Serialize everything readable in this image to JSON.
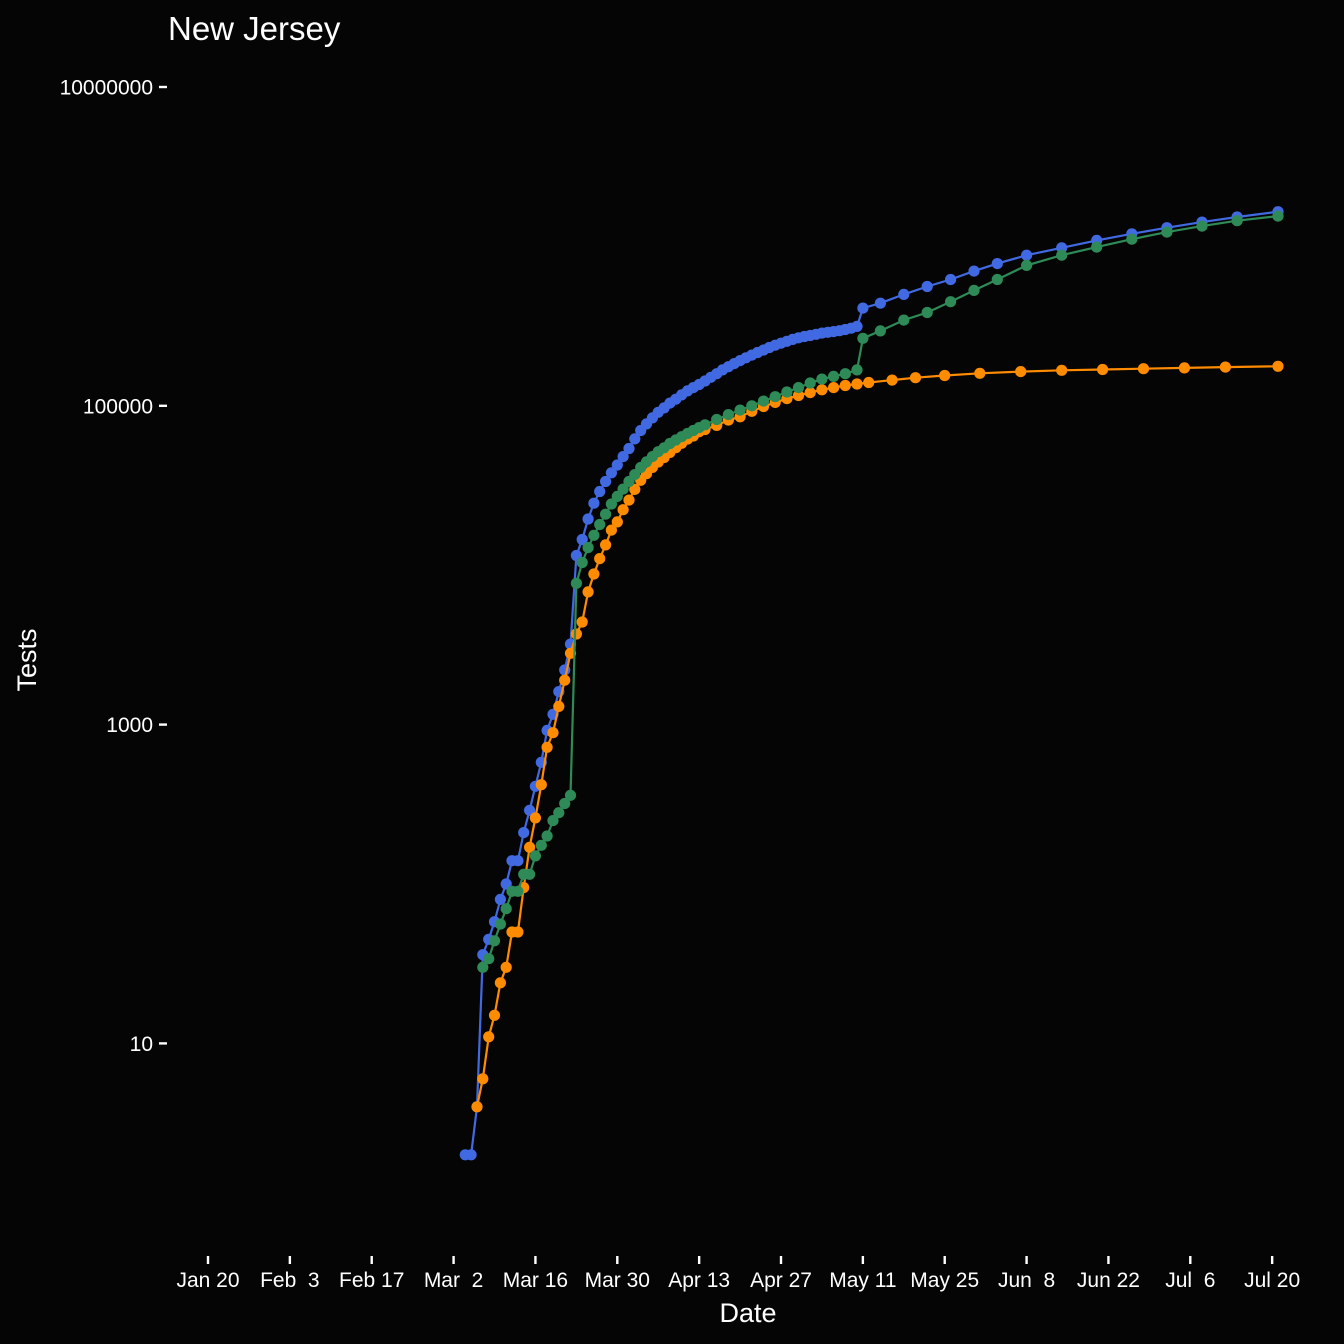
{
  "chart_data": {
    "type": "line",
    "title": "New Jersey",
    "xlabel": "Date",
    "ylabel": "Tests",
    "y_scale": "log10",
    "ylim": [
      1,
      10000000
    ],
    "xlim": [
      "2020-01-16",
      "2020-07-21"
    ],
    "y_ticks": [
      10,
      1000,
      100000,
      10000000
    ],
    "y_tick_labels": [
      "10",
      "1000",
      "100000",
      "10000000"
    ],
    "x_ticks": [
      "2020-01-20",
      "2020-02-03",
      "2020-02-17",
      "2020-03-02",
      "2020-03-16",
      "2020-03-30",
      "2020-04-13",
      "2020-04-27",
      "2020-05-11",
      "2020-05-25",
      "2020-06-08",
      "2020-06-22",
      "2020-07-06",
      "2020-07-20"
    ],
    "x_tick_labels": [
      "Jan 20",
      "Feb  3",
      "Feb 17",
      "Mar  2",
      "Mar 16",
      "Mar 30",
      "Apr 13",
      "Apr 27",
      "May 11",
      "May 25",
      "Jun  8",
      "Jun 22",
      "Jul  6",
      "Jul 20"
    ],
    "grid": false,
    "legend": "none",
    "series": [
      {
        "color": "#4169e1",
        "points": [
          [
            "2020-03-04",
            2
          ],
          [
            "2020-03-05",
            2
          ],
          [
            "2020-03-06",
            4
          ],
          [
            "2020-03-07",
            36
          ],
          [
            "2020-03-08",
            45
          ],
          [
            "2020-03-09",
            58
          ],
          [
            "2020-03-10",
            80
          ],
          [
            "2020-03-11",
            100
          ],
          [
            "2020-03-12",
            140
          ],
          [
            "2020-03-13",
            140
          ],
          [
            "2020-03-14",
            210
          ],
          [
            "2020-03-15",
            290
          ],
          [
            "2020-03-16",
            410
          ],
          [
            "2020-03-17",
            580
          ],
          [
            "2020-03-18",
            920
          ],
          [
            "2020-03-19",
            1160
          ],
          [
            "2020-03-20",
            1610
          ],
          [
            "2020-03-21",
            2200
          ],
          [
            "2020-03-22",
            3200
          ],
          [
            "2020-03-23",
            11500
          ],
          [
            "2020-03-24",
            14500
          ],
          [
            "2020-03-25",
            19500
          ],
          [
            "2020-03-26",
            24500
          ],
          [
            "2020-03-27",
            29000
          ],
          [
            "2020-03-28",
            33500
          ],
          [
            "2020-03-29",
            38000
          ],
          [
            "2020-03-30",
            42500
          ],
          [
            "2020-03-31",
            48000
          ],
          [
            "2020-04-01",
            54000
          ],
          [
            "2020-04-02",
            62000
          ],
          [
            "2020-04-03",
            70000
          ],
          [
            "2020-04-04",
            77000
          ],
          [
            "2020-04-05",
            84000
          ],
          [
            "2020-04-06",
            91000
          ],
          [
            "2020-04-07",
            97000
          ],
          [
            "2020-04-08",
            104000
          ],
          [
            "2020-04-09",
            110000
          ],
          [
            "2020-04-10",
            117000
          ],
          [
            "2020-04-11",
            124000
          ],
          [
            "2020-04-12",
            130000
          ],
          [
            "2020-04-13",
            136000
          ],
          [
            "2020-04-14",
            143000
          ],
          [
            "2020-04-15",
            151000
          ],
          [
            "2020-04-16",
            159000
          ],
          [
            "2020-04-17",
            168000
          ],
          [
            "2020-04-18",
            176000
          ],
          [
            "2020-04-19",
            184000
          ],
          [
            "2020-04-20",
            192000
          ],
          [
            "2020-04-21",
            200000
          ],
          [
            "2020-04-22",
            208000
          ],
          [
            "2020-04-23",
            216000
          ],
          [
            "2020-04-24",
            224000
          ],
          [
            "2020-04-25",
            232000
          ],
          [
            "2020-04-26",
            240000
          ],
          [
            "2020-04-27",
            247000
          ],
          [
            "2020-04-28",
            254000
          ],
          [
            "2020-04-29",
            261000
          ],
          [
            "2020-04-30",
            267000
          ],
          [
            "2020-05-01",
            272000
          ],
          [
            "2020-05-02",
            276000
          ],
          [
            "2020-05-03",
            281000
          ],
          [
            "2020-05-04",
            286000
          ],
          [
            "2020-05-05",
            289000
          ],
          [
            "2020-05-06",
            292000
          ],
          [
            "2020-05-07",
            296000
          ],
          [
            "2020-05-08",
            301000
          ],
          [
            "2020-05-09",
            307000
          ],
          [
            "2020-05-10",
            315000
          ],
          [
            "2020-05-11",
            410000
          ],
          [
            "2020-05-14",
            440000
          ],
          [
            "2020-05-18",
            500000
          ],
          [
            "2020-05-22",
            560000
          ],
          [
            "2020-05-26",
            620000
          ],
          [
            "2020-05-30",
            700000
          ],
          [
            "2020-06-03",
            780000
          ],
          [
            "2020-06-08",
            880000
          ],
          [
            "2020-06-14",
            980000
          ],
          [
            "2020-06-20",
            1090000
          ],
          [
            "2020-06-26",
            1200000
          ],
          [
            "2020-07-02",
            1310000
          ],
          [
            "2020-07-08",
            1420000
          ],
          [
            "2020-07-14",
            1530000
          ],
          [
            "2020-07-21",
            1650000
          ]
        ]
      },
      {
        "color": "#ff8c00",
        "points": [
          [
            "2020-03-06",
            4
          ],
          [
            "2020-03-07",
            6
          ],
          [
            "2020-03-08",
            11
          ],
          [
            "2020-03-09",
            15
          ],
          [
            "2020-03-10",
            24
          ],
          [
            "2020-03-11",
            30
          ],
          [
            "2020-03-12",
            50
          ],
          [
            "2020-03-13",
            50
          ],
          [
            "2020-03-14",
            95
          ],
          [
            "2020-03-15",
            170
          ],
          [
            "2020-03-16",
            260
          ],
          [
            "2020-03-17",
            420
          ],
          [
            "2020-03-18",
            720
          ],
          [
            "2020-03-19",
            890
          ],
          [
            "2020-03-20",
            1300
          ],
          [
            "2020-03-21",
            1900
          ],
          [
            "2020-03-22",
            2800
          ],
          [
            "2020-03-23",
            3700
          ],
          [
            "2020-03-24",
            4400
          ],
          [
            "2020-03-25",
            6800
          ],
          [
            "2020-03-26",
            8800
          ],
          [
            "2020-03-27",
            11000
          ],
          [
            "2020-03-28",
            13400
          ],
          [
            "2020-03-29",
            16600
          ],
          [
            "2020-03-30",
            18700
          ],
          [
            "2020-03-31",
            22300
          ],
          [
            "2020-04-01",
            25600
          ],
          [
            "2020-04-02",
            29900
          ],
          [
            "2020-04-03",
            34100
          ],
          [
            "2020-04-04",
            37500
          ],
          [
            "2020-04-05",
            41100
          ],
          [
            "2020-04-06",
            44400
          ],
          [
            "2020-04-07",
            47400
          ],
          [
            "2020-04-08",
            51000
          ],
          [
            "2020-04-09",
            54600
          ],
          [
            "2020-04-10",
            58200
          ],
          [
            "2020-04-11",
            61900
          ],
          [
            "2020-04-12",
            64600
          ],
          [
            "2020-04-13",
            68800
          ],
          [
            "2020-04-14",
            71000
          ],
          [
            "2020-04-16",
            75300
          ],
          [
            "2020-04-18",
            81400
          ],
          [
            "2020-04-20",
            85300
          ],
          [
            "2020-04-22",
            92400
          ],
          [
            "2020-04-24",
            99000
          ],
          [
            "2020-04-26",
            105000
          ],
          [
            "2020-04-28",
            111000
          ],
          [
            "2020-04-30",
            116000
          ],
          [
            "2020-05-02",
            121000
          ],
          [
            "2020-05-04",
            126000
          ],
          [
            "2020-05-06",
            130000
          ],
          [
            "2020-05-08",
            134000
          ],
          [
            "2020-05-10",
            137000
          ],
          [
            "2020-05-12",
            140000
          ],
          [
            "2020-05-16",
            145000
          ],
          [
            "2020-05-20",
            150000
          ],
          [
            "2020-05-25",
            155000
          ],
          [
            "2020-05-31",
            160000
          ],
          [
            "2020-06-07",
            164000
          ],
          [
            "2020-06-14",
            167000
          ],
          [
            "2020-06-21",
            169000
          ],
          [
            "2020-06-28",
            171000
          ],
          [
            "2020-07-05",
            173000
          ],
          [
            "2020-07-12",
            175000
          ],
          [
            "2020-07-21",
            177000
          ]
        ]
      },
      {
        "color": "#2e8b57",
        "points": [
          [
            "2020-03-07",
            30
          ],
          [
            "2020-03-08",
            34
          ],
          [
            "2020-03-09",
            44
          ],
          [
            "2020-03-10",
            56
          ],
          [
            "2020-03-11",
            70
          ],
          [
            "2020-03-12",
            90
          ],
          [
            "2020-03-13",
            90
          ],
          [
            "2020-03-14",
            115
          ],
          [
            "2020-03-15",
            115
          ],
          [
            "2020-03-16",
            150
          ],
          [
            "2020-03-17",
            175
          ],
          [
            "2020-03-18",
            200
          ],
          [
            "2020-03-19",
            250
          ],
          [
            "2020-03-20",
            280
          ],
          [
            "2020-03-21",
            320
          ],
          [
            "2020-03-22",
            360
          ],
          [
            "2020-03-23",
            7700
          ],
          [
            "2020-03-24",
            10400
          ],
          [
            "2020-03-25",
            12900
          ],
          [
            "2020-03-26",
            15400
          ],
          [
            "2020-03-27",
            18000
          ],
          [
            "2020-03-28",
            20900
          ],
          [
            "2020-03-29",
            24200
          ],
          [
            "2020-03-30",
            27000
          ],
          [
            "2020-03-31",
            30000
          ],
          [
            "2020-04-01",
            33500
          ],
          [
            "2020-04-02",
            37000
          ],
          [
            "2020-04-03",
            41000
          ],
          [
            "2020-04-04",
            44500
          ],
          [
            "2020-04-05",
            48000
          ],
          [
            "2020-04-06",
            51500
          ],
          [
            "2020-04-07",
            54500
          ],
          [
            "2020-04-08",
            58000
          ],
          [
            "2020-04-09",
            61000
          ],
          [
            "2020-04-10",
            64000
          ],
          [
            "2020-04-11",
            67000
          ],
          [
            "2020-04-12",
            70000
          ],
          [
            "2020-04-13",
            73000
          ],
          [
            "2020-04-14",
            76000
          ],
          [
            "2020-04-16",
            82000
          ],
          [
            "2020-04-18",
            88000
          ],
          [
            "2020-04-20",
            94000
          ],
          [
            "2020-04-22",
            100000
          ],
          [
            "2020-04-24",
            107000
          ],
          [
            "2020-04-26",
            114000
          ],
          [
            "2020-04-28",
            122000
          ],
          [
            "2020-04-30",
            130000
          ],
          [
            "2020-05-02",
            139000
          ],
          [
            "2020-05-04",
            147000
          ],
          [
            "2020-05-06",
            153000
          ],
          [
            "2020-05-08",
            159000
          ],
          [
            "2020-05-10",
            168000
          ],
          [
            "2020-05-11",
            265000
          ],
          [
            "2020-05-14",
            295000
          ],
          [
            "2020-05-18",
            345000
          ],
          [
            "2020-05-22",
            385000
          ],
          [
            "2020-05-26",
            450000
          ],
          [
            "2020-05-30",
            530000
          ],
          [
            "2020-06-03",
            620000
          ],
          [
            "2020-06-08",
            760000
          ],
          [
            "2020-06-14",
            880000
          ],
          [
            "2020-06-20",
            990000
          ],
          [
            "2020-06-26",
            1110000
          ],
          [
            "2020-07-02",
            1230000
          ],
          [
            "2020-07-08",
            1340000
          ],
          [
            "2020-07-14",
            1450000
          ],
          [
            "2020-07-21",
            1550000
          ]
        ]
      }
    ]
  }
}
